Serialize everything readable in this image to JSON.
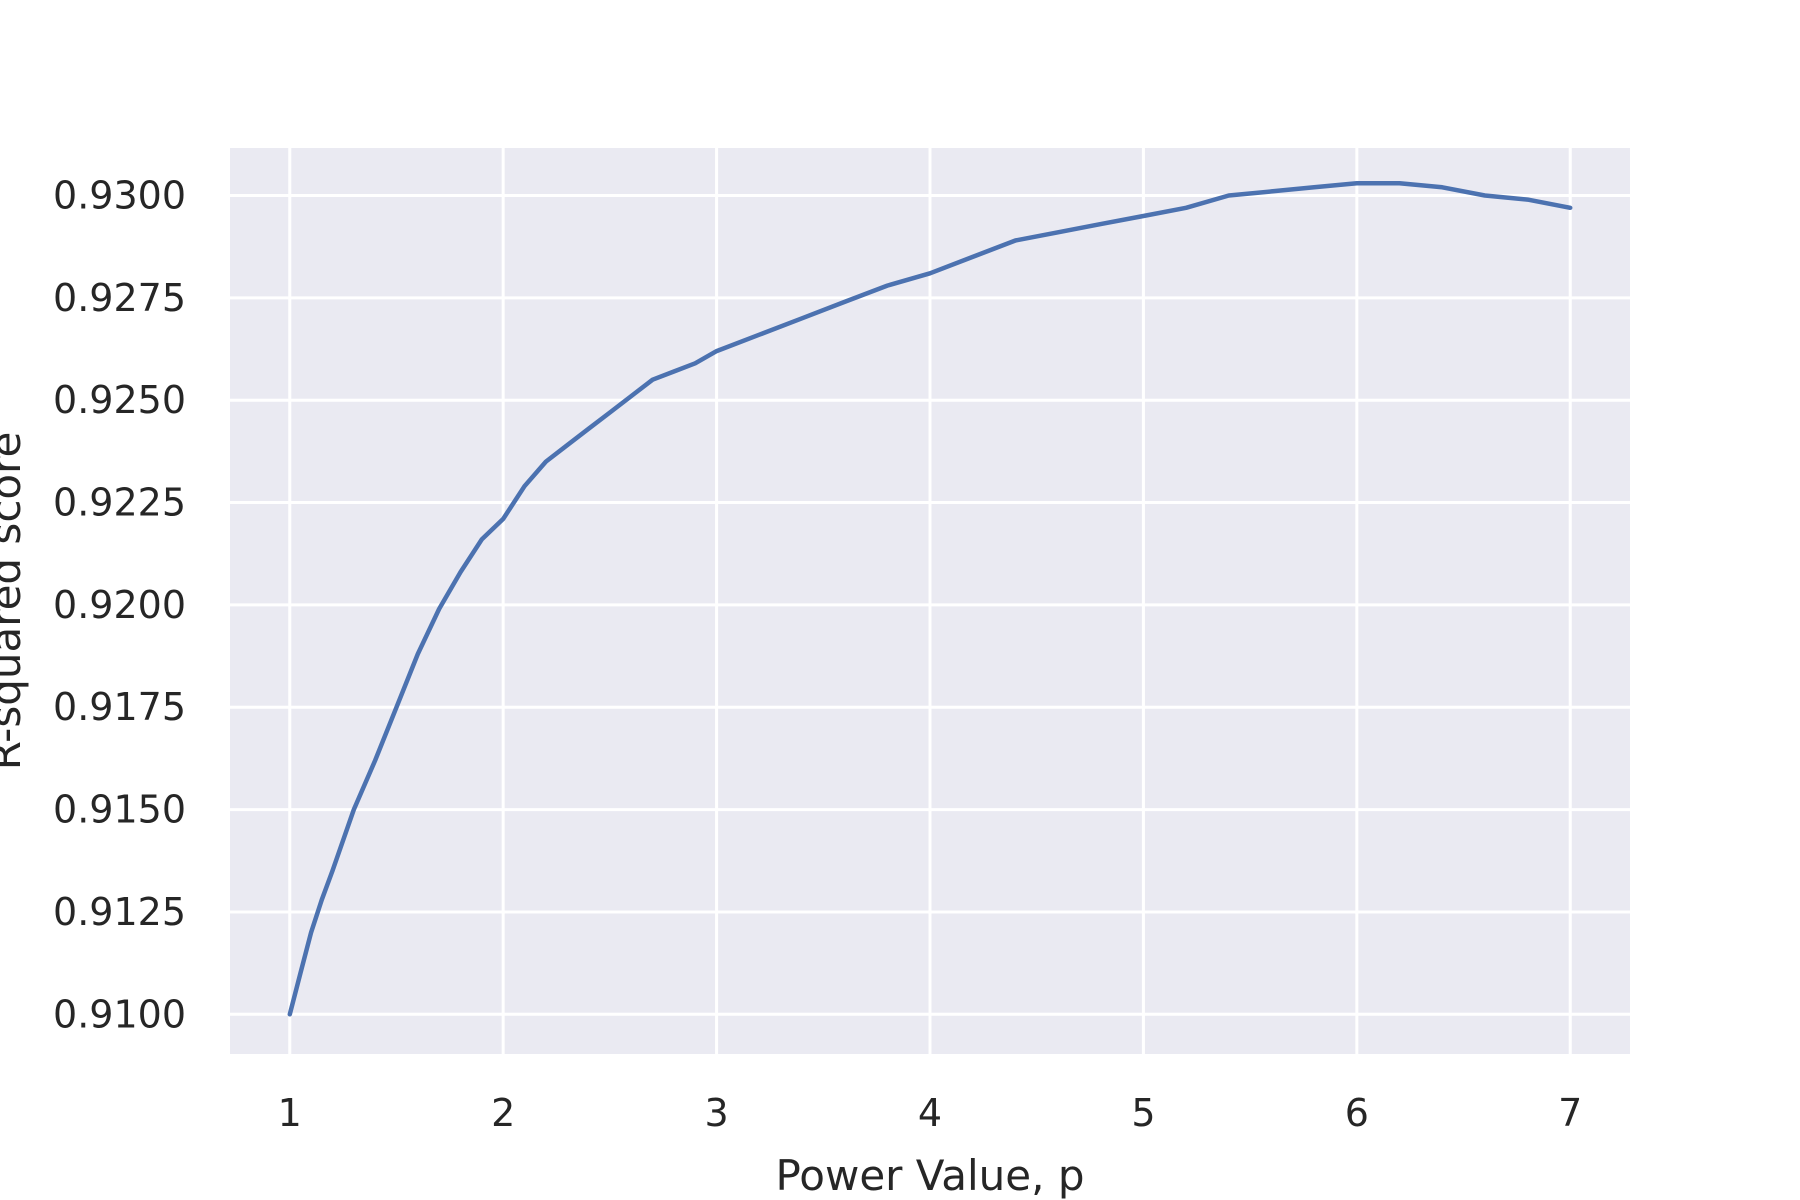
{
  "chart_data": {
    "type": "line",
    "title": "",
    "xlabel": "Power Value, p",
    "ylabel": "R-squared score",
    "xlim": [
      0.72,
      7.28
    ],
    "ylim": [
      0.90903,
      0.93116
    ],
    "x_ticks": [
      1,
      2,
      3,
      4,
      5,
      6,
      7
    ],
    "y_ticks": [
      0.91,
      0.9125,
      0.915,
      0.9175,
      0.92,
      0.9225,
      0.925,
      0.9275,
      0.93
    ],
    "y_tick_labels": [
      "0.9100",
      "0.9125",
      "0.9150",
      "0.9175",
      "0.9200",
      "0.9225",
      "0.9250",
      "0.9275",
      "0.9300"
    ],
    "grid": true,
    "colors": {
      "background": "#eaeaf2",
      "grid": "#ffffff",
      "line": "#4c72b0"
    },
    "series": [
      {
        "x": [
          1.0,
          1.05,
          1.1,
          1.15,
          1.2,
          1.3,
          1.4,
          1.5,
          1.6,
          1.7,
          1.8,
          1.9,
          2.0,
          2.1,
          2.2,
          2.3,
          2.4,
          2.5,
          2.6,
          2.7,
          2.8,
          2.9,
          3.0,
          3.2,
          3.4,
          3.6,
          3.8,
          4.0,
          4.2,
          4.4,
          4.6,
          4.8,
          5.0,
          5.2,
          5.4,
          5.6,
          5.8,
          6.0,
          6.2,
          6.4,
          6.6,
          6.8,
          7.0
        ],
        "y": [
          0.91,
          0.911,
          0.912,
          0.9128,
          0.9135,
          0.915,
          0.9162,
          0.9175,
          0.9188,
          0.9199,
          0.9208,
          0.9216,
          0.9221,
          0.9229,
          0.9235,
          0.9239,
          0.9243,
          0.9247,
          0.9251,
          0.9255,
          0.9257,
          0.9259,
          0.9262,
          0.9266,
          0.927,
          0.9274,
          0.9278,
          0.9281,
          0.9285,
          0.9289,
          0.9291,
          0.9293,
          0.9295,
          0.9297,
          0.93,
          0.9301,
          0.9302,
          0.9303,
          0.9303,
          0.9302,
          0.93,
          0.9299,
          0.9297
        ]
      }
    ]
  }
}
